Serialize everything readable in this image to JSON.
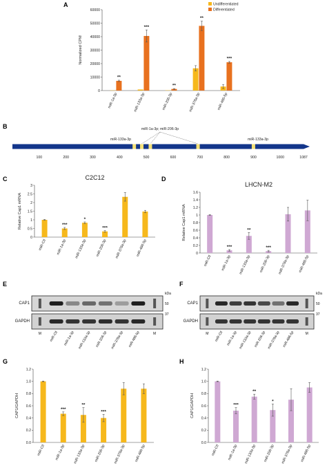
{
  "panels": {
    "A": "A",
    "B": "B",
    "C": "C",
    "D": "D",
    "E": "E",
    "F": "F",
    "G": "G",
    "H": "H"
  },
  "colors": {
    "undiff": "#F6B81C",
    "diff": "#E8711F",
    "c2c12": "#F6B81C",
    "lhcn": "#CFA8D3",
    "cds": "#13368B",
    "site": "#F3E178"
  },
  "chart_data": [
    {
      "panel": "A",
      "type": "bar",
      "categories": [
        "miR-1a-3p",
        "miR-133a-3p",
        "miR-206-3p",
        "miR-378a-3p",
        "miR-486-5p"
      ],
      "series": [
        {
          "name": "Undifferentiated",
          "values": [
            150,
            800,
            200,
            16500,
            3000
          ],
          "errors": [
            0,
            0,
            0,
            2000,
            1500
          ]
        },
        {
          "name": "Differentiated",
          "values": [
            7200,
            40500,
            1200,
            48000,
            21000
          ],
          "errors": [
            500,
            4500,
            300,
            3500,
            600
          ]
        }
      ],
      "stars": [
        "**",
        "***",
        "**",
        "**",
        "***"
      ],
      "ylabel": "Normalized CPM",
      "ylim": [
        0,
        60000
      ],
      "yticks": [
        "0",
        "10000",
        "20000",
        "30000",
        "40000",
        "50000",
        "60000"
      ],
      "legend": "top-right"
    },
    {
      "panel": "C",
      "type": "bar",
      "title": "C2C12",
      "categories": [
        "miR-Ctl",
        "miR-1a-3p",
        "miR-133a-3p",
        "miR-206-3p",
        "miR-378a-3p",
        "miR-486-5p"
      ],
      "values": [
        1.0,
        0.5,
        0.83,
        0.33,
        2.33,
        1.48
      ],
      "errors": [
        0.02,
        0.06,
        0.05,
        0.05,
        0.25,
        0.07
      ],
      "stars": [
        "",
        "***",
        "*",
        "***",
        "",
        ""
      ],
      "ylabel": "Relative Cap1 mRNA",
      "ylim": [
        0,
        3
      ],
      "yticks": [
        "0",
        "0.5",
        "1",
        "1.5",
        "2",
        "2.5",
        "3"
      ]
    },
    {
      "panel": "D",
      "type": "bar",
      "title": "LHCN-M2",
      "categories": [
        "miR-Ctl",
        "miR-1a-3p",
        "miR-133a-3p",
        "miR-206-3p",
        "miR-378a-3p",
        "miR-486-5p"
      ],
      "values": [
        1.0,
        0.07,
        0.45,
        0.05,
        1.02,
        1.12
      ],
      "errors": [
        0.01,
        0.02,
        0.09,
        0.02,
        0.18,
        0.27
      ],
      "stars": [
        "",
        "***",
        "**",
        "***",
        "",
        ""
      ],
      "ylabel": "Relative Cap1 mRNA",
      "ylim": [
        0,
        1.6
      ],
      "yticks": [
        "0",
        "0.2",
        "0.4",
        "0.6",
        "0.8",
        "1",
        "1.2",
        "1.4",
        "1.6"
      ]
    },
    {
      "panel": "G",
      "type": "bar",
      "categories": [
        "miR-Ctl",
        "miR-1a-3p",
        "miR-133a-3p",
        "miR-206-3p",
        "miR-378a-3p",
        "miR-486-5p"
      ],
      "values": [
        1.0,
        0.47,
        0.45,
        0.4,
        0.88,
        0.88
      ],
      "errors": [
        0.005,
        0.03,
        0.12,
        0.06,
        0.1,
        0.08
      ],
      "stars": [
        "",
        "***",
        "**",
        "***",
        "",
        ""
      ],
      "ylabel": "CAP1/GAPDH",
      "ylim": [
        0,
        1.2
      ],
      "yticks": [
        "0.0",
        "0.2",
        "0.4",
        "0.6",
        "0.8",
        "1.0",
        "1.2"
      ]
    },
    {
      "panel": "H",
      "type": "bar",
      "categories": [
        "miR-Ctl",
        "miR-1a-3p",
        "miR-133a-3p",
        "miR-206-3p",
        "miR-378a-3p",
        "miR-486-5p"
      ],
      "values": [
        1.0,
        0.52,
        0.75,
        0.53,
        0.7,
        0.9
      ],
      "errors": [
        0.005,
        0.05,
        0.04,
        0.1,
        0.18,
        0.08
      ],
      "stars": [
        "",
        "***",
        "**",
        "*",
        "",
        ""
      ],
      "ylabel": "CAP1/GAPDH",
      "ylim": [
        0,
        1.2
      ],
      "yticks": [
        "0.0",
        "0.2",
        "0.4",
        "0.6",
        "0.8",
        "1.0",
        "1.2"
      ]
    }
  ],
  "diagram": {
    "length": 1087,
    "ticks": [
      100,
      200,
      300,
      400,
      500,
      600,
      700,
      800,
      900,
      1000,
      1087
    ],
    "sites": [
      455,
      483,
      515,
      693,
      900
    ],
    "label_133": "miR-133a-3p",
    "label_1a_206": "miR-1a-3p; miR-206-3p",
    "label_133b": "miR-133a-3p"
  },
  "blots": {
    "E": {
      "lanes": [
        "M",
        "miR-Ctl",
        "miR-1a-3p",
        "miR-133a-3p",
        "miR-206-3p",
        "miR-378a-3p",
        "miR-486-5p",
        "M"
      ],
      "cap1": "CAP1",
      "gapdh": "GAPDH",
      "kda": "kDa",
      "m50": "50",
      "m37": "37"
    },
    "F": {
      "lanes": [
        "M",
        "miR-Ctl",
        "miR-1a-3p",
        "miR-133a-3p",
        "miR-206-3p",
        "miR-378a-3p",
        "miR-486-5p",
        "M"
      ],
      "cap1": "CAP1",
      "gapdh": "GAPDH",
      "kda": "kDa",
      "m50": "50",
      "m37": "37"
    }
  }
}
